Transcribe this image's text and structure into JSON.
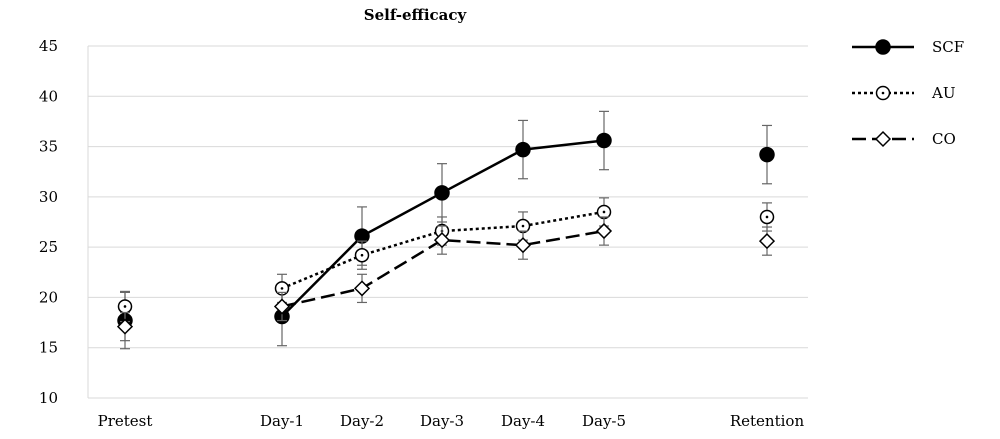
{
  "chart_data": {
    "type": "line",
    "title": "Self-efficacy",
    "xlabel": "",
    "ylabel": "",
    "ylim": [
      10,
      45
    ],
    "yticks": [
      10,
      15,
      20,
      25,
      30,
      35,
      40,
      45
    ],
    "grid": true,
    "legend": "right",
    "categories": [
      "Pretest",
      "Day-1",
      "Day-2",
      "Day-3",
      "Day-4",
      "Day-5",
      "Retention"
    ],
    "series": [
      {
        "name": "SCF",
        "marker": "filled-circle",
        "line_style": "solid",
        "color": "#000000",
        "values": [
          17.7,
          18.1,
          26.1,
          30.4,
          34.7,
          35.6,
          34.2
        ],
        "error": [
          2.8,
          2.9,
          2.9,
          2.9,
          2.9,
          2.9,
          2.9
        ],
        "connected": [
          false,
          true,
          true,
          true,
          true,
          true,
          false
        ]
      },
      {
        "name": "AU",
        "marker": "dotted-circle",
        "line_style": "dotted",
        "color": "#000000",
        "values": [
          19.1,
          20.9,
          24.2,
          26.6,
          27.1,
          28.5,
          28.0
        ],
        "error": [
          1.5,
          1.4,
          1.4,
          1.4,
          1.4,
          1.4,
          1.4
        ],
        "connected": [
          false,
          true,
          true,
          true,
          true,
          true,
          false
        ]
      },
      {
        "name": "CO",
        "marker": "open-diamond",
        "line_style": "dashed",
        "color": "#000000",
        "values": [
          17.1,
          19.1,
          20.9,
          25.7,
          25.2,
          26.6,
          25.6
        ],
        "error": [
          1.4,
          1.4,
          1.4,
          1.4,
          1.4,
          1.4,
          1.4
        ],
        "connected": [
          false,
          true,
          true,
          true,
          true,
          true,
          false
        ]
      }
    ]
  }
}
